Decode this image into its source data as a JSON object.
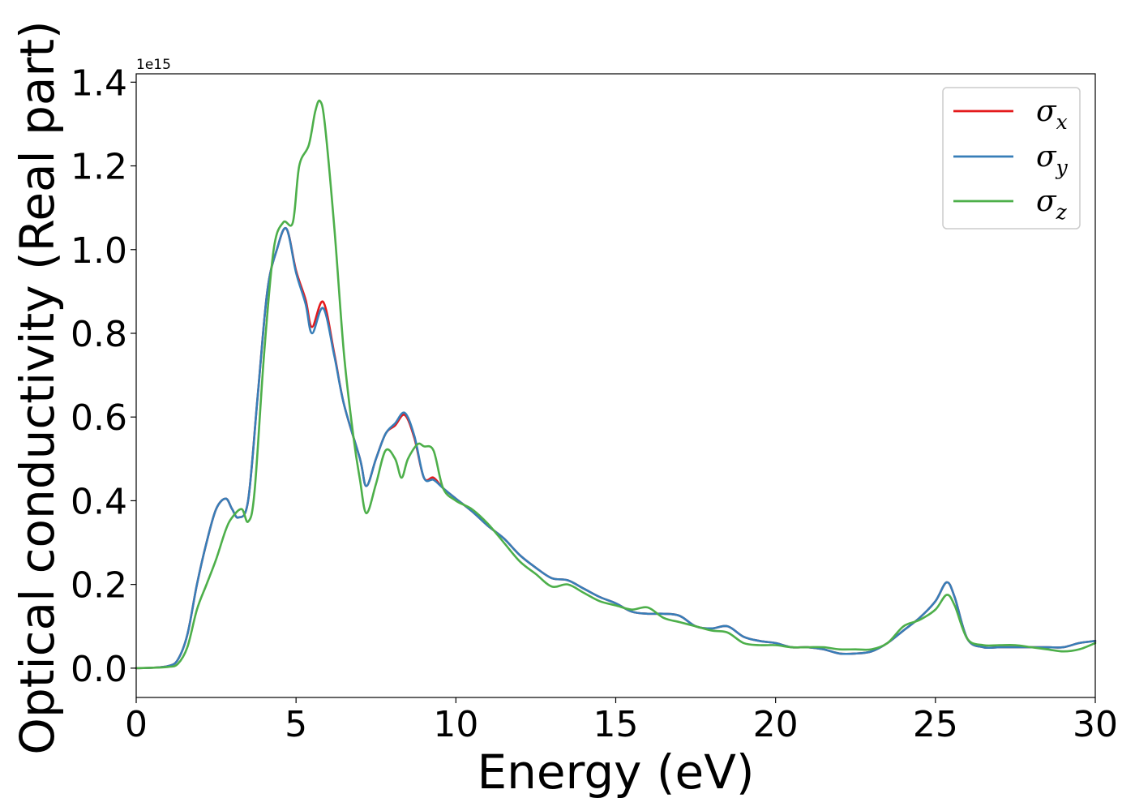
{
  "chart_data": {
    "type": "line",
    "xlabel": "Energy (eV)",
    "ylabel": "Optical conductivity (Real part)",
    "y_offset_label": "1e15",
    "xlim": [
      0,
      30
    ],
    "ylim": [
      -0.07,
      1.42
    ],
    "x_ticks": [
      0,
      5,
      10,
      15,
      20,
      25,
      30
    ],
    "x_tick_labels": [
      "0",
      "5",
      "10",
      "15",
      "20",
      "25",
      "30"
    ],
    "y_ticks": [
      0.0,
      0.2,
      0.4,
      0.6,
      0.8,
      1.0,
      1.2,
      1.4
    ],
    "y_tick_labels": [
      "0.0",
      "0.2",
      "0.4",
      "0.6",
      "0.8",
      "1.0",
      "1.2",
      "1.4"
    ],
    "grid": false,
    "legend_placement": "top-right",
    "series": [
      {
        "name": "σx",
        "symbol": "σ",
        "subscript": "x",
        "color": "#e41a1c",
        "x": [
          0,
          0.5,
          1.0,
          1.3,
          1.6,
          1.9,
          2.2,
          2.5,
          2.8,
          3.0,
          3.2,
          3.5,
          3.8,
          4.1,
          4.4,
          4.7,
          5.0,
          5.3,
          5.5,
          5.85,
          6.2,
          6.5,
          7.0,
          7.2,
          7.5,
          7.8,
          8.1,
          8.4,
          8.7,
          9.0,
          9.3,
          9.6,
          10.0,
          10.5,
          11.0,
          11.5,
          12.0,
          12.5,
          13.0,
          13.5,
          14.0,
          14.5,
          15.0,
          15.5,
          16.0,
          16.5,
          17.0,
          17.5,
          18.0,
          18.5,
          19.0,
          19.5,
          20.0,
          20.5,
          21.0,
          21.5,
          22.0,
          22.5,
          23.0,
          23.5,
          24.0,
          24.5,
          25.0,
          25.35,
          25.6,
          26.0,
          26.5,
          27.0,
          27.5,
          28.0,
          28.5,
          29.0,
          29.5,
          30.0
        ],
        "y": [
          0.0,
          0.001,
          0.005,
          0.02,
          0.08,
          0.2,
          0.3,
          0.38,
          0.405,
          0.38,
          0.36,
          0.4,
          0.65,
          0.9,
          1.0,
          1.05,
          0.95,
          0.88,
          0.815,
          0.875,
          0.75,
          0.63,
          0.5,
          0.435,
          0.5,
          0.56,
          0.58,
          0.605,
          0.55,
          0.455,
          0.455,
          0.43,
          0.405,
          0.375,
          0.34,
          0.31,
          0.27,
          0.24,
          0.215,
          0.21,
          0.19,
          0.17,
          0.155,
          0.135,
          0.13,
          0.13,
          0.125,
          0.1,
          0.095,
          0.1,
          0.075,
          0.065,
          0.06,
          0.05,
          0.05,
          0.045,
          0.035,
          0.035,
          0.04,
          0.06,
          0.09,
          0.12,
          0.16,
          0.205,
          0.17,
          0.07,
          0.05,
          0.05,
          0.05,
          0.05,
          0.05,
          0.05,
          0.06,
          0.065
        ]
      },
      {
        "name": "σy",
        "symbol": "σ",
        "subscript": "y",
        "color": "#377eb8",
        "x": [
          0,
          0.5,
          1.0,
          1.3,
          1.6,
          1.9,
          2.2,
          2.5,
          2.8,
          3.0,
          3.2,
          3.5,
          3.8,
          4.1,
          4.4,
          4.7,
          5.0,
          5.3,
          5.5,
          5.85,
          6.2,
          6.5,
          7.0,
          7.2,
          7.5,
          7.8,
          8.1,
          8.4,
          8.7,
          9.0,
          9.3,
          9.6,
          10.0,
          10.5,
          11.0,
          11.5,
          12.0,
          12.5,
          13.0,
          13.5,
          14.0,
          14.5,
          15.0,
          15.5,
          16.0,
          16.5,
          17.0,
          17.5,
          18.0,
          18.5,
          19.0,
          19.5,
          20.0,
          20.5,
          21.0,
          21.5,
          22.0,
          22.5,
          23.0,
          23.5,
          24.0,
          24.5,
          25.0,
          25.35,
          25.6,
          26.0,
          26.5,
          27.0,
          27.5,
          28.0,
          28.5,
          29.0,
          29.5,
          30.0
        ],
        "y": [
          0.0,
          0.001,
          0.005,
          0.02,
          0.08,
          0.2,
          0.3,
          0.38,
          0.405,
          0.38,
          0.36,
          0.4,
          0.65,
          0.9,
          1.0,
          1.05,
          0.945,
          0.87,
          0.8,
          0.86,
          0.745,
          0.63,
          0.5,
          0.435,
          0.5,
          0.56,
          0.585,
          0.61,
          0.555,
          0.455,
          0.45,
          0.43,
          0.405,
          0.375,
          0.34,
          0.31,
          0.27,
          0.24,
          0.215,
          0.21,
          0.19,
          0.17,
          0.155,
          0.135,
          0.13,
          0.13,
          0.125,
          0.1,
          0.095,
          0.1,
          0.075,
          0.065,
          0.06,
          0.05,
          0.05,
          0.045,
          0.035,
          0.035,
          0.04,
          0.06,
          0.09,
          0.12,
          0.16,
          0.205,
          0.17,
          0.07,
          0.05,
          0.05,
          0.05,
          0.05,
          0.05,
          0.05,
          0.06,
          0.065
        ]
      },
      {
        "name": "σz",
        "symbol": "σ",
        "subscript": "z",
        "color": "#4daf4a",
        "x": [
          0,
          0.5,
          1.0,
          1.3,
          1.6,
          1.9,
          2.2,
          2.5,
          2.8,
          3.0,
          3.3,
          3.5,
          3.7,
          4.0,
          4.3,
          4.6,
          4.9,
          5.1,
          5.4,
          5.6,
          5.75,
          5.9,
          6.2,
          6.5,
          6.8,
          7.0,
          7.2,
          7.5,
          7.8,
          8.1,
          8.3,
          8.5,
          8.8,
          9.0,
          9.3,
          9.6,
          10.0,
          10.5,
          11.0,
          11.5,
          12.0,
          12.5,
          13.0,
          13.5,
          14.0,
          14.5,
          15.0,
          15.5,
          16.0,
          16.5,
          17.0,
          17.5,
          18.0,
          18.5,
          19.0,
          19.5,
          20.0,
          20.5,
          21.0,
          21.5,
          22.0,
          22.5,
          23.0,
          23.5,
          24.0,
          24.5,
          25.0,
          25.35,
          25.6,
          26.0,
          26.5,
          27.0,
          27.5,
          28.0,
          28.5,
          29.0,
          29.5,
          30.0
        ],
        "y": [
          0.0,
          0.001,
          0.003,
          0.01,
          0.05,
          0.14,
          0.2,
          0.26,
          0.33,
          0.36,
          0.38,
          0.35,
          0.42,
          0.75,
          1.0,
          1.065,
          1.065,
          1.2,
          1.25,
          1.33,
          1.355,
          1.3,
          1.05,
          0.75,
          0.55,
          0.45,
          0.37,
          0.44,
          0.52,
          0.5,
          0.455,
          0.5,
          0.535,
          0.53,
          0.52,
          0.43,
          0.4,
          0.38,
          0.345,
          0.3,
          0.255,
          0.225,
          0.195,
          0.2,
          0.18,
          0.16,
          0.15,
          0.14,
          0.145,
          0.12,
          0.11,
          0.1,
          0.09,
          0.085,
          0.06,
          0.055,
          0.055,
          0.05,
          0.05,
          0.05,
          0.045,
          0.045,
          0.045,
          0.06,
          0.1,
          0.115,
          0.14,
          0.175,
          0.15,
          0.07,
          0.055,
          0.055,
          0.055,
          0.05,
          0.045,
          0.04,
          0.045,
          0.06
        ]
      }
    ]
  }
}
